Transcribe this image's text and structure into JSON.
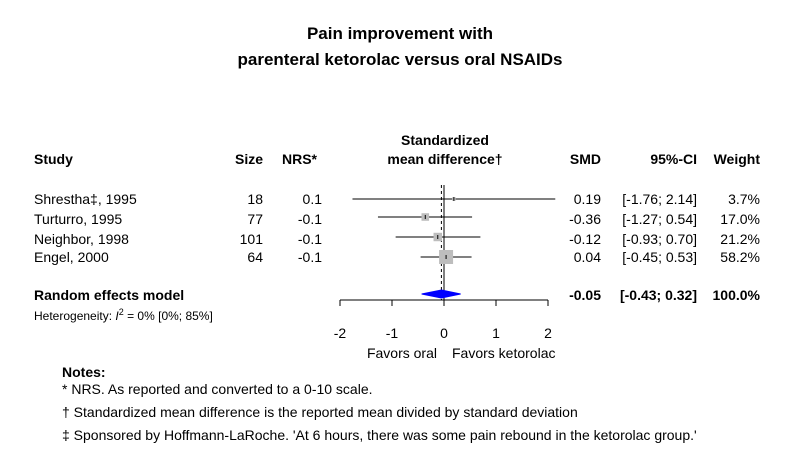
{
  "chart_data": {
    "type": "forest",
    "title_line1": "Pain improvement with",
    "title_line2": "parenteral ketorolac versus oral NSAIDs",
    "columns": {
      "study": "Study",
      "size": "Size",
      "nrs": "NRS*",
      "effect_line1": "Standardized",
      "effect_line2": "mean difference†",
      "smd": "SMD",
      "ci": "95%-CI",
      "weight": "Weight"
    },
    "xlim": [
      -2,
      2
    ],
    "xticks": [
      "-2",
      "-1",
      "0",
      "1",
      "2"
    ],
    "xlabel_left": "Favors oral",
    "xlabel_right": "Favors ketorolac",
    "studies": [
      {
        "study": "Shrestha‡, 1995",
        "size": "18",
        "nrs": "0.1",
        "smd": 0.19,
        "lower": -1.76,
        "upper": 2.14,
        "smd_text": "0.19",
        "ci_text": "[-1.76; 2.14]",
        "weight_text": "3.7%",
        "weight": 3.7
      },
      {
        "study": "Turturro, 1995",
        "size": "77",
        "nrs": "-0.1",
        "smd": -0.36,
        "lower": -1.27,
        "upper": 0.54,
        "smd_text": "-0.36",
        "ci_text": "[-1.27; 0.54]",
        "weight_text": "17.0%",
        "weight": 17.0
      },
      {
        "study": "Neighbor, 1998",
        "size": "101",
        "nrs": "-0.1",
        "smd": -0.12,
        "lower": -0.93,
        "upper": 0.7,
        "smd_text": "-0.12",
        "ci_text": "[-0.93; 0.70]",
        "weight_text": "21.2%",
        "weight": 21.2
      },
      {
        "study": "Engel, 2000",
        "size": "64",
        "nrs": "-0.1",
        "smd": 0.04,
        "lower": -0.45,
        "upper": 0.53,
        "smd_text": "0.04",
        "ci_text": "[-0.45; 0.53]",
        "weight_text": "58.2%",
        "weight": 58.2
      }
    ],
    "pooled": {
      "label": "Random effects model",
      "smd": -0.05,
      "lower": -0.43,
      "upper": 0.32,
      "smd_text": "-0.05",
      "ci_text": "[-0.43; 0.32]",
      "weight_text": "100.0%"
    },
    "heterogeneity_prefix": "Heterogeneity: ",
    "heterogeneity_i": "I",
    "heterogeneity_sup": "2",
    "heterogeneity_rest": " = 0% [0%; 85%]",
    "colors": {
      "pooled": "#0000ff",
      "box": "#bdbdbd",
      "line": "#000000"
    }
  },
  "notes": {
    "heading": "Notes:",
    "lines": [
      "* NRS. As reported and converted to a 0-10 scale.",
      "† Standardized mean difference is the reported mean divided by standard deviation",
      "‡ Sponsored by Hoffmann-LaRoche. 'At 6 hours, there was some pain rebound in the ketorolac group.'"
    ]
  }
}
